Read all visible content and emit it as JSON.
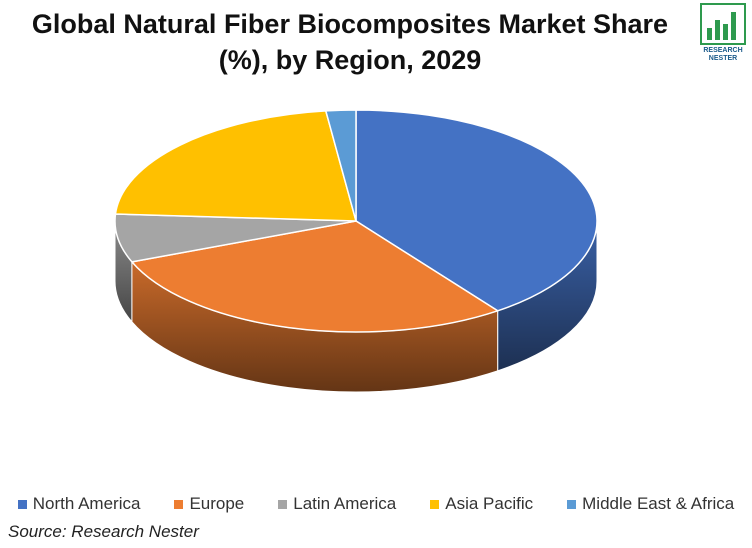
{
  "chart_data": {
    "type": "pie",
    "title_lines": [
      "Global Natural Fiber Biocomposites Market Share",
      "(%), by Region, 2029"
    ],
    "categories": [
      "North America",
      "Europe",
      "Latin America",
      "Asia Pacific",
      "Middle East & Africa"
    ],
    "values": [
      40,
      29,
      7,
      22,
      2
    ],
    "colors": [
      "#4472C4",
      "#ED7D31",
      "#A5A5A5",
      "#FFC000",
      "#5B9BD5"
    ],
    "legend_position": "bottom",
    "three_d": true
  },
  "logo": {
    "line1": "RESEARCH",
    "line2": "NESTER",
    "bar_color": "#2E9A4E"
  },
  "source": "Source: Research Nester"
}
